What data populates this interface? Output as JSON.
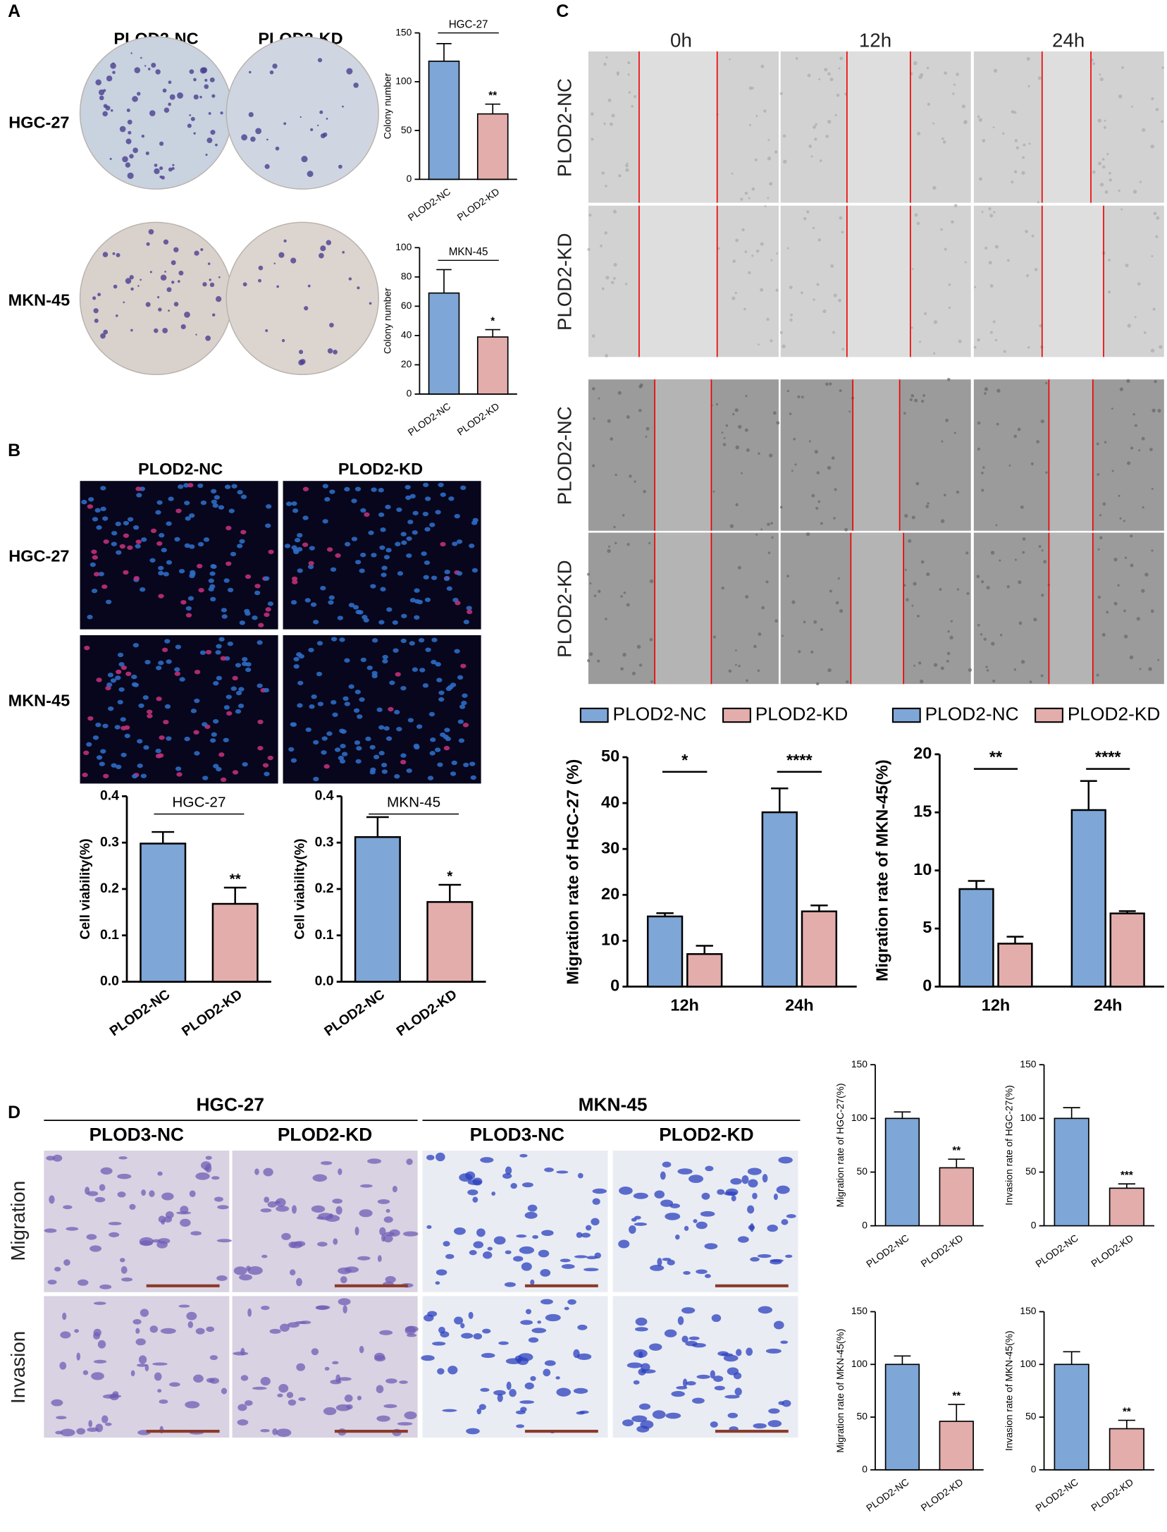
{
  "panels": {
    "A": {
      "label": "A",
      "columns": [
        "PLOD2-NC",
        "PLOD2-KD"
      ],
      "rows": [
        "HGC-27",
        "MKN-45"
      ]
    },
    "B": {
      "label": "B",
      "columns": [
        "PLOD2-NC",
        "PLOD2-KD"
      ],
      "rows": [
        "HGC-27",
        "MKN-45"
      ]
    },
    "C": {
      "label": "C",
      "columns": [
        "0h",
        "12h",
        "24h"
      ],
      "rows": [
        "PLOD2-NC",
        "PLOD2-KD",
        "PLOD2-NC",
        "PLOD2-KD"
      ]
    },
    "D": {
      "label": "D",
      "groups": [
        "HGC-27",
        "MKN-45"
      ],
      "columns": [
        "PLOD3-NC",
        "PLOD2-KD",
        "PLOD3-NC",
        "PLOD2-KD"
      ],
      "rows": [
        "Migration",
        "Invasion"
      ]
    }
  },
  "chart_data": [
    {
      "type": "bar",
      "title": "HGC-27",
      "ylabel": "Colony number",
      "categories": [
        "PLOD2-NC",
        "PLOD2-KD"
      ],
      "values": [
        121,
        67
      ],
      "errors": [
        18,
        10
      ],
      "colors": [
        "#7ea6d6",
        "#e3adac"
      ],
      "significance": "**",
      "ylim": [
        0,
        150
      ],
      "yticks": [
        0,
        50,
        100,
        150
      ]
    },
    {
      "type": "bar",
      "title": "MKN-45",
      "ylabel": "Colony number",
      "categories": [
        "PLOD2-NC",
        "PLOD2-KD"
      ],
      "values": [
        69,
        39
      ],
      "errors": [
        16,
        5
      ],
      "colors": [
        "#7ea6d6",
        "#e3adac"
      ],
      "significance": "*",
      "ylim": [
        0,
        100
      ],
      "yticks": [
        0,
        20,
        40,
        60,
        80,
        100
      ]
    },
    {
      "type": "bar",
      "title": "HGC-27",
      "ylabel": "Cell viability(%)",
      "categories": [
        "PLOD2-NC",
        "PLOD2-KD"
      ],
      "values": [
        0.298,
        0.168
      ],
      "errors": [
        0.025,
        0.035
      ],
      "colors": [
        "#7ea6d6",
        "#e3adac"
      ],
      "significance": "**",
      "ylim": [
        0,
        0.4
      ],
      "yticks": [
        {
          "value": 0,
          "label": "0.0"
        },
        0.1,
        0.2,
        0.3,
        0.4
      ]
    },
    {
      "type": "bar",
      "title": "MKN-45",
      "ylabel": "Cell viability(%)",
      "categories": [
        "PLOD2-NC",
        "PLOD2-KD"
      ],
      "values": [
        0.312,
        0.172
      ],
      "errors": [
        0.043,
        0.037
      ],
      "colors": [
        "#7ea6d6",
        "#e3adac"
      ],
      "significance": "*",
      "ylim": [
        0,
        0.4
      ],
      "yticks": [
        {
          "value": 0,
          "label": "0.0"
        },
        0.1,
        0.2,
        0.3,
        0.4
      ]
    },
    {
      "type": "grouped_bar",
      "ylabel": "Migration rate of HGC-27 (%)",
      "categories": [
        "12h",
        "24h"
      ],
      "series": [
        {
          "name": "PLOD2-NC",
          "color": "#7ea6d6",
          "values": [
            15.3,
            38
          ],
          "errors": [
            0.7,
            5.2
          ]
        },
        {
          "name": "PLOD2-KD",
          "color": "#e3adac",
          "values": [
            7.1,
            16.4
          ],
          "errors": [
            1.8,
            1.3
          ]
        }
      ],
      "significance": [
        "*",
        "****"
      ],
      "ylim": [
        0,
        50
      ],
      "yticks": [
        0,
        10,
        20,
        30,
        40,
        50
      ],
      "legend": "top"
    },
    {
      "type": "grouped_bar",
      "ylabel": "Migration rate of MKN-45(%)",
      "categories": [
        "12h",
        "24h"
      ],
      "series": [
        {
          "name": "PLOD2-NC",
          "color": "#7ea6d6",
          "values": [
            8.4,
            15.2
          ],
          "errors": [
            0.7,
            2.5
          ]
        },
        {
          "name": "PLOD2-KD",
          "color": "#e3adac",
          "values": [
            3.7,
            6.3
          ],
          "errors": [
            0.6,
            0.2
          ]
        }
      ],
      "significance": [
        "**",
        "****"
      ],
      "ylim": [
        0,
        20
      ],
      "yticks": [
        0,
        5,
        10,
        15,
        20
      ],
      "legend": "top"
    },
    {
      "type": "bar",
      "ylabel": "Migration rate of HGC-27(%)",
      "categories": [
        "PLOD2-NC",
        "PLOD2-KD"
      ],
      "values": [
        100,
        54
      ],
      "errors": [
        6,
        8
      ],
      "colors": [
        "#7ea6d6",
        "#e3adac"
      ],
      "significance": "**",
      "ylim": [
        0,
        150
      ],
      "yticks": [
        0,
        50,
        100,
        150
      ]
    },
    {
      "type": "bar",
      "ylabel": "Invasion rate of HGC-27(%)",
      "categories": [
        "PLOD2-NC",
        "PLOD2-KD"
      ],
      "values": [
        100,
        35
      ],
      "errors": [
        10,
        4
      ],
      "colors": [
        "#7ea6d6",
        "#e3adac"
      ],
      "significance": "***",
      "ylim": [
        0,
        150
      ],
      "yticks": [
        0,
        50,
        100,
        150
      ]
    },
    {
      "type": "bar",
      "ylabel": "Migration rate of MKN-45(%)",
      "categories": [
        "PLOD2-NC",
        "PLOD2-KD"
      ],
      "values": [
        100,
        46
      ],
      "errors": [
        8,
        16
      ],
      "colors": [
        "#7ea6d6",
        "#e3adac"
      ],
      "significance": "**",
      "ylim": [
        0,
        150
      ],
      "yticks": [
        0,
        50,
        100,
        150
      ]
    },
    {
      "type": "bar",
      "ylabel": "Invasion rate of MKN-45(%)",
      "categories": [
        "PLOD2-NC",
        "PLOD2-KD"
      ],
      "values": [
        100,
        39
      ],
      "errors": [
        12,
        8
      ],
      "colors": [
        "#7ea6d6",
        "#e3adac"
      ],
      "significance": "**",
      "ylim": [
        0,
        150
      ],
      "yticks": [
        0,
        50,
        100,
        150
      ]
    }
  ]
}
